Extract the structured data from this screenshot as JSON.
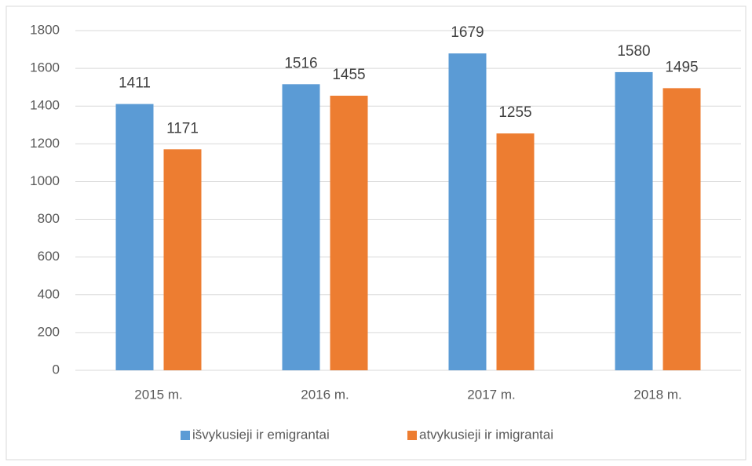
{
  "chart_data": {
    "type": "bar",
    "categories": [
      "2015 m.",
      "2016 m.",
      "2017 m.",
      "2018 m."
    ],
    "series": [
      {
        "name": "išvykusieji ir emigrantai",
        "color": "#5b9bd5",
        "values": [
          1411,
          1516,
          1679,
          1580
        ]
      },
      {
        "name": "atvykusieji ir imigrantai",
        "color": "#ed7d31",
        "values": [
          1171,
          1455,
          1255,
          1495
        ]
      }
    ],
    "ylim": [
      0,
      1800
    ],
    "yticks": [
      0,
      200,
      400,
      600,
      800,
      1000,
      1200,
      1400,
      1600,
      1800
    ],
    "grid": true,
    "legend": "bottom"
  }
}
